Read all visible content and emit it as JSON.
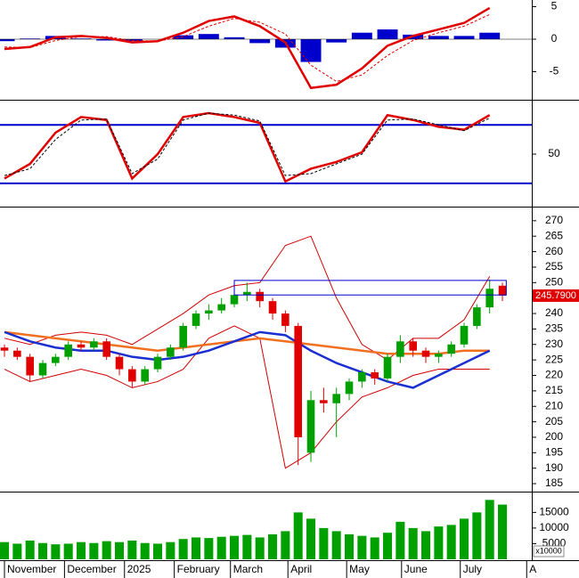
{
  "chart_data": [
    {
      "type": "line",
      "xlim": [
        -0.35,
        41.3
      ],
      "ylim": [
        -9.04,
        6.03
      ],
      "yticks": [
        5,
        0,
        -5
      ],
      "x": [
        0,
        2,
        4,
        6,
        8,
        10,
        12,
        14,
        16,
        18,
        20,
        22,
        24,
        26,
        28,
        30,
        32,
        34,
        36,
        38
      ],
      "series": [
        {
          "kind": "bar",
          "color": "#0000cc",
          "values": [
            -0.3,
            0.1,
            0.5,
            0.1,
            -0.2,
            -0.3,
            0,
            0.6,
            0.8,
            0.3,
            -0.6,
            -1.3,
            -3.5,
            -0.5,
            1.0,
            1.5,
            0.7,
            0.5,
            0.5,
            1.0
          ]
        },
        {
          "kind": "line",
          "color": "#e00000",
          "width": 2.5,
          "values": [
            -1.5,
            -1.2,
            0.3,
            0.5,
            0.2,
            -0.5,
            -0.3,
            1.0,
            2.8,
            3.5,
            2.0,
            -0.5,
            -7.5,
            -7.0,
            -4.5,
            -1.0,
            0.5,
            1.5,
            2.5,
            4.8
          ]
        },
        {
          "kind": "line",
          "color": "#e00000",
          "width": 1,
          "dashed": true,
          "values": [
            -1.2,
            -1.3,
            -0.2,
            0.4,
            0.4,
            -0.2,
            -0.3,
            0.4,
            2.0,
            3.2,
            2.6,
            0.8,
            -4.0,
            -6.5,
            -5.5,
            -2.5,
            -0.2,
            1.0,
            2.0,
            3.8
          ]
        }
      ]
    },
    {
      "type": "line",
      "xlim": [
        -0.35,
        41.3
      ],
      "ylim": [
        -2,
        103
      ],
      "yticks": [
        50
      ],
      "levels": [
        80,
        20
      ],
      "level_color": "#0000cc",
      "x": [
        0,
        2,
        4,
        6,
        8,
        10,
        12,
        14,
        16,
        18,
        20,
        22,
        24,
        26,
        28,
        30,
        32,
        34,
        36,
        38
      ],
      "series": [
        {
          "kind": "line",
          "color": "#e00000",
          "width": 2.5,
          "values": [
            25,
            40,
            72,
            88,
            85,
            25,
            50,
            88,
            92,
            88,
            82,
            22,
            35,
            42,
            52,
            90,
            85,
            78,
            75,
            90
          ]
        },
        {
          "kind": "line",
          "color": "#000000",
          "width": 1,
          "dashed": true,
          "values": [
            28,
            35,
            65,
            85,
            86,
            30,
            45,
            85,
            92,
            90,
            84,
            28,
            30,
            40,
            50,
            85,
            86,
            80,
            74,
            87
          ]
        }
      ]
    },
    {
      "type": "candlestick",
      "xlim": [
        -0.35,
        41.3
      ],
      "ylim": [
        183,
        273.7
      ],
      "yticks": [
        185,
        190,
        195,
        200,
        205,
        210,
        215,
        220,
        225,
        230,
        235,
        240,
        245,
        250,
        255,
        260,
        265,
        270
      ],
      "up_color": "#00a000",
      "down_color": "#e00000",
      "x": [
        0,
        1,
        2,
        3,
        4,
        5,
        6,
        7,
        8,
        9,
        10,
        11,
        12,
        13,
        14,
        15,
        16,
        17,
        18,
        19,
        20,
        21,
        22,
        23,
        24,
        25,
        26,
        27,
        28,
        29,
        30,
        31,
        32,
        33,
        34,
        35,
        36,
        37,
        38,
        39
      ],
      "open": [
        229,
        228,
        226,
        220,
        224,
        226,
        230,
        229,
        231,
        226,
        222,
        218,
        222,
        226,
        229,
        236,
        240,
        241,
        243,
        246,
        247,
        244,
        240,
        236,
        195,
        212,
        211,
        214,
        218,
        221,
        219,
        226,
        231,
        228,
        226,
        227,
        230,
        236,
        242,
        249
      ],
      "high": [
        230,
        229,
        227,
        225,
        227,
        231,
        231,
        232,
        232,
        227,
        223,
        223,
        227,
        230,
        237,
        241,
        243,
        245,
        248,
        250,
        248,
        245,
        241,
        237,
        215,
        216,
        216,
        219,
        222,
        222,
        227,
        233,
        232,
        229,
        228,
        231,
        237,
        243,
        251,
        250
      ],
      "low": [
        226,
        225,
        218,
        219,
        223,
        225,
        228,
        228,
        225,
        220,
        216,
        217,
        221,
        225,
        228,
        235,
        238,
        240,
        242,
        244,
        242,
        238,
        234,
        191,
        192,
        208,
        200,
        212,
        216,
        217,
        218,
        224,
        226,
        224,
        224,
        226,
        229,
        235,
        240,
        244
      ],
      "close": [
        228,
        226,
        220,
        224,
        226,
        230,
        229,
        231,
        226,
        222,
        218,
        222,
        226,
        229,
        236,
        240,
        241,
        243,
        246,
        247,
        244,
        240,
        236,
        200,
        212,
        211,
        214,
        218,
        221,
        219,
        226,
        231,
        228,
        226,
        227,
        230,
        236,
        242,
        248,
        245.79
      ],
      "overlay_x": [
        0,
        2,
        4,
        6,
        8,
        10,
        12,
        14,
        16,
        18,
        20,
        22,
        24,
        26,
        28,
        30,
        32,
        34,
        36,
        38
      ],
      "overlays": [
        {
          "color": "#d00000",
          "width": 1,
          "values": [
            232,
            230,
            233,
            234,
            233,
            230,
            235,
            240,
            246,
            249,
            250,
            262,
            265,
            245,
            230,
            225,
            232,
            232,
            238,
            252
          ]
        },
        {
          "color": "#d00000",
          "width": 1,
          "values": [
            222,
            218,
            220,
            222,
            220,
            216,
            218,
            222,
            232,
            236,
            232,
            190,
            195,
            205,
            213,
            216,
            220,
            222,
            222,
            222
          ]
        },
        {
          "color": "#f07020",
          "width": 2.5,
          "values": [
            234,
            233,
            232,
            231,
            230,
            229,
            228,
            229,
            230,
            231,
            232,
            231,
            230,
            229,
            228,
            227,
            227,
            227,
            228,
            228
          ]
        },
        {
          "color": "#1a2fd0",
          "width": 2.5,
          "values": [
            234,
            231,
            229,
            228,
            228,
            226,
            225,
            226,
            228,
            231,
            234,
            233,
            228,
            224,
            221,
            218,
            216,
            220,
            224,
            228
          ]
        }
      ],
      "zone": {
        "x": [
          18,
          39.3
        ],
        "y": [
          246,
          250.7
        ],
        "color": "#0000cc"
      },
      "last_label": {
        "value": 245.79,
        "label": "245.7900"
      }
    },
    {
      "type": "bar",
      "xlim": [
        -0.35,
        41.3
      ],
      "ylim": [
        0,
        20800
      ],
      "yticks": [
        5000,
        10000,
        15000
      ],
      "unit_label": "x10000",
      "color": "#00a000",
      "x": [
        0,
        1,
        2,
        3,
        4,
        5,
        6,
        7,
        8,
        9,
        10,
        11,
        12,
        13,
        14,
        15,
        16,
        17,
        18,
        19,
        20,
        21,
        22,
        23,
        24,
        25,
        26,
        27,
        28,
        29,
        30,
        31,
        32,
        33,
        34,
        35,
        36,
        37,
        38,
        39
      ],
      "values": [
        5500,
        5000,
        6000,
        5200,
        4800,
        5000,
        5500,
        5200,
        5800,
        5500,
        6000,
        5200,
        5000,
        5500,
        6500,
        7000,
        6800,
        7200,
        7500,
        7800,
        7000,
        8000,
        9000,
        15000,
        13000,
        10000,
        9000,
        8000,
        7500,
        7000,
        8500,
        12000,
        10000,
        9000,
        10500,
        11000,
        13000,
        15000,
        19000,
        17500
      ],
      "xticks": [
        {
          "value": 0,
          "label": "November"
        },
        {
          "value": 4.7,
          "label": "December"
        },
        {
          "value": 9.4,
          "label": "2025"
        },
        {
          "value": 13.3,
          "label": "February"
        },
        {
          "value": 17.7,
          "label": "March"
        },
        {
          "value": 22.2,
          "label": "April"
        },
        {
          "value": 26.8,
          "label": "May"
        },
        {
          "value": 31.1,
          "label": "June"
        },
        {
          "value": 35.7,
          "label": "July"
        },
        {
          "value": 40.9,
          "label": "A"
        }
      ]
    }
  ]
}
